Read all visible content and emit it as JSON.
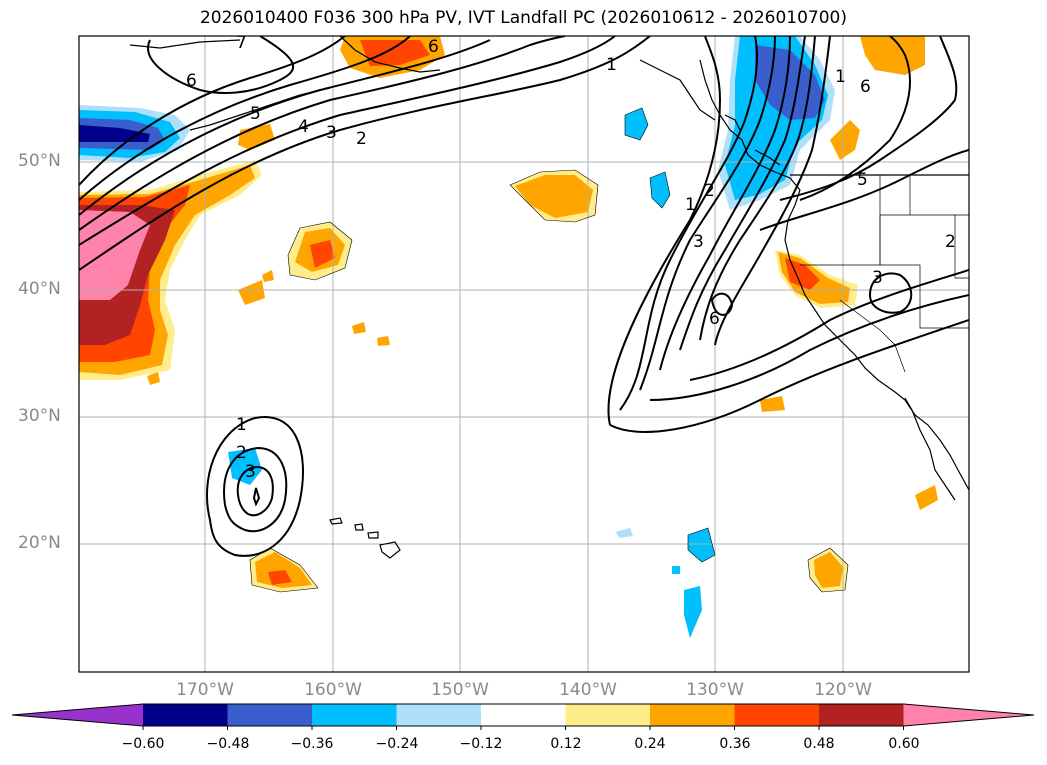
{
  "title": "2026010400 F036 300 hPa PV, IVT Landfall PC (2026010612 - 2026010700)",
  "lat_labels": [
    "50°N",
    "40°N",
    "30°N",
    "20°N"
  ],
  "lon_labels": [
    "170°W",
    "160°W",
    "150°W",
    "140°W",
    "130°W",
    "120°W"
  ],
  "contour_labels": [
    "7",
    "6",
    "6",
    "5",
    "4",
    "3",
    "2",
    "1",
    "1",
    "2",
    "3",
    "6",
    "1",
    "6",
    "5",
    "3",
    "2",
    "1",
    "2",
    "3"
  ],
  "colorbar": {
    "tick_labels": [
      "−0.60",
      "−0.48",
      "−0.36",
      "−0.24",
      "−0.12",
      "0.12",
      "0.24",
      "0.36",
      "0.48",
      "0.60"
    ],
    "colors": [
      "#9932cc",
      "#00008b",
      "#3a5fcd",
      "#00bfff",
      "#afe0fa",
      "#ffffff",
      "#ffec8b",
      "#ffa500",
      "#ff4500",
      "#b22222",
      "#ff82ab"
    ]
  }
}
